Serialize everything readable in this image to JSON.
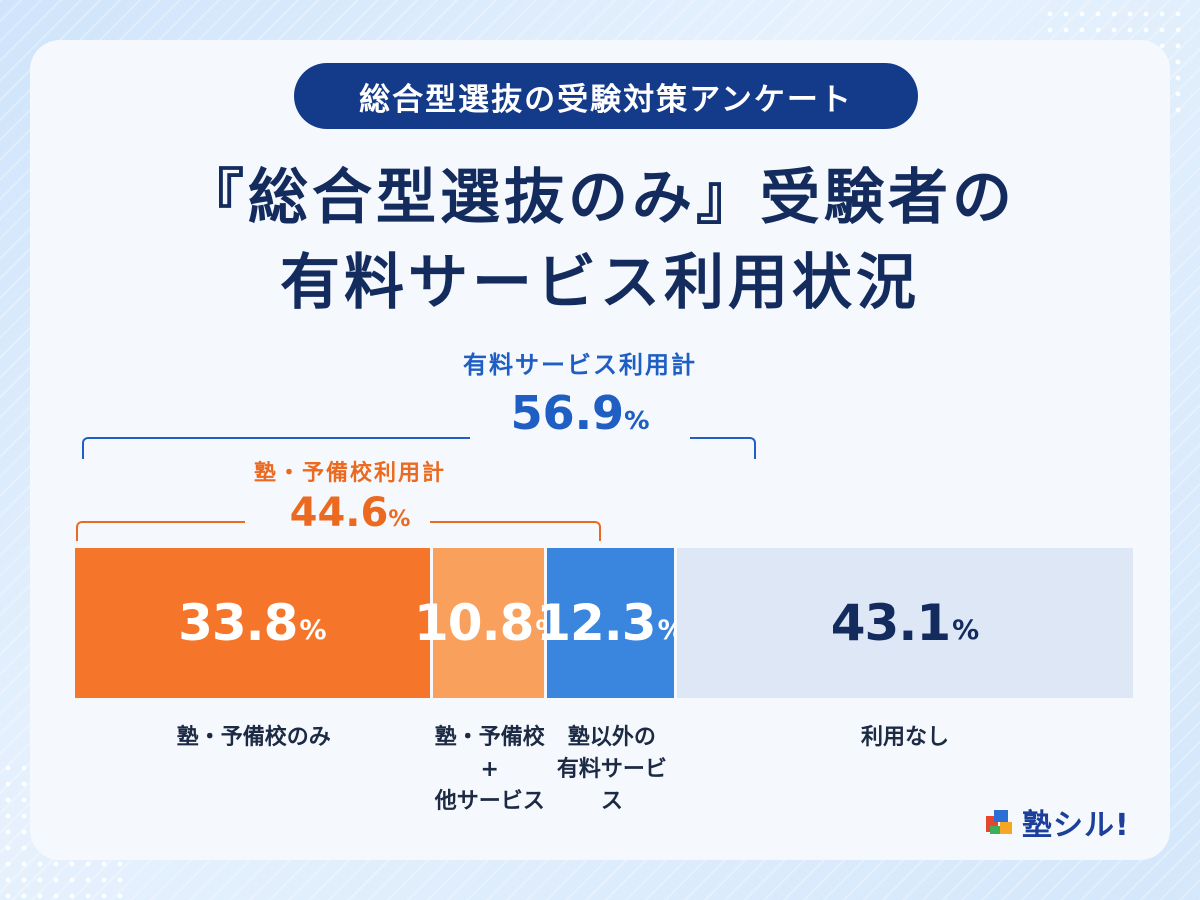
{
  "header": {
    "pill": "総合型選抜の受験対策アンケート",
    "title_line1": "『総合型選抜のみ』受験者の",
    "title_line2": "有料サービス利用状況"
  },
  "chart_data": {
    "type": "bar",
    "orientation": "horizontal-stacked",
    "title": "『総合型選抜のみ』受験者の有料サービス利用状況",
    "unit": "%",
    "categories": [
      "塾・予備校のみ",
      "塾・予備校+他サービス",
      "塾以外の有料サービス",
      "利用なし"
    ],
    "category_labels": [
      "塾・予備校のみ",
      "塾・予備校+\n他サービス",
      "塾以外の\n有料サービス",
      "利用なし"
    ],
    "values": [
      33.8,
      10.8,
      12.3,
      43.1
    ],
    "value_labels": [
      "33.8",
      "10.8",
      "12.3",
      "43.1"
    ],
    "colors": [
      "#f5762a",
      "#f9a05c",
      "#3a86de",
      "#dde7f6"
    ],
    "label_colors": [
      "#ffffff",
      "#ffffff",
      "#ffffff",
      "#142b5e"
    ],
    "groups": [
      {
        "label": "有料サービス利用計",
        "value": "56.9",
        "span": [
          0,
          2
        ],
        "color": "#1f5fc4"
      },
      {
        "label": "塾・予備校利用計",
        "value": "44.6",
        "span": [
          0,
          1
        ],
        "color": "#ec6a1f"
      }
    ]
  },
  "logo": {
    "text": "塾シル!",
    "colors": [
      "#e8452c",
      "#f5a623",
      "#2b6fd6",
      "#3cae5a"
    ]
  }
}
